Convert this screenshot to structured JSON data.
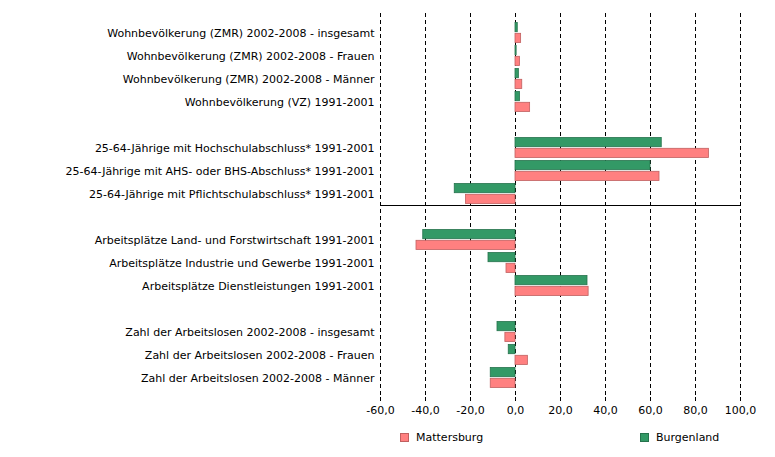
{
  "chart_data": {
    "type": "bar",
    "orientation": "horizontal",
    "categories": [
      "Wohnbevölkerung (ZMR) 2002-2008 - insgesamt",
      "Wohnbevölkerung (ZMR) 2002-2008 - Frauen",
      "Wohnbevölkerung (ZMR) 2002-2008 - Männer",
      "Wohnbevölkerung (VZ) 1991-2001",
      null,
      "25-64-Jährige mit Hochschulabschluss* 1991-2001",
      "25-64-Jährige mit AHS- oder BHS-Abschluss* 1991-2001",
      "25-64-Jährige mit Pflichtschulabschluss* 1991-2001",
      null,
      "Arbeitsplätze Land- und Forstwirtschaft 1991-2001",
      "Arbeitsplätze Industrie und Gewerbe 1991-2001",
      "Arbeitsplätze Dienstleistungen 1991-2001",
      null,
      "Zahl der Arbeitslosen 2002-2008 - insgesamt",
      "Zahl der Arbeitslosen 2002-2008 - Frauen",
      "Zahl der Arbeitslosen 2002-2008 - Männer"
    ],
    "series": [
      {
        "name": "Mattersburg",
        "color": "#ff8080",
        "values": [
          2.5,
          2.0,
          3.0,
          6.5,
          null,
          86.0,
          64.0,
          -22.0,
          null,
          -44.0,
          -4.0,
          32.5,
          null,
          -4.5,
          5.5,
          -11.0
        ]
      },
      {
        "name": "Burgenland",
        "color": "#339966",
        "values": [
          1.0,
          0.5,
          1.5,
          2.0,
          null,
          65.0,
          60.0,
          -27.0,
          null,
          -41.0,
          -12.0,
          32.0,
          null,
          -8.0,
          -3.0,
          -11.0
        ]
      }
    ],
    "xlim": [
      -60,
      100
    ],
    "xticks": [
      {
        "value": -60,
        "label": "-60,0"
      },
      {
        "value": -40,
        "label": "-40,0"
      },
      {
        "value": -20,
        "label": "-20,0"
      },
      {
        "value": 0,
        "label": "0,0"
      },
      {
        "value": 20,
        "label": "20,0"
      },
      {
        "value": 40,
        "label": "40,0"
      },
      {
        "value": 60,
        "label": "60,0"
      },
      {
        "value": 80,
        "label": "80,0"
      },
      {
        "value": 100,
        "label": "100,0"
      }
    ],
    "grid": true,
    "legend": "bottom"
  }
}
